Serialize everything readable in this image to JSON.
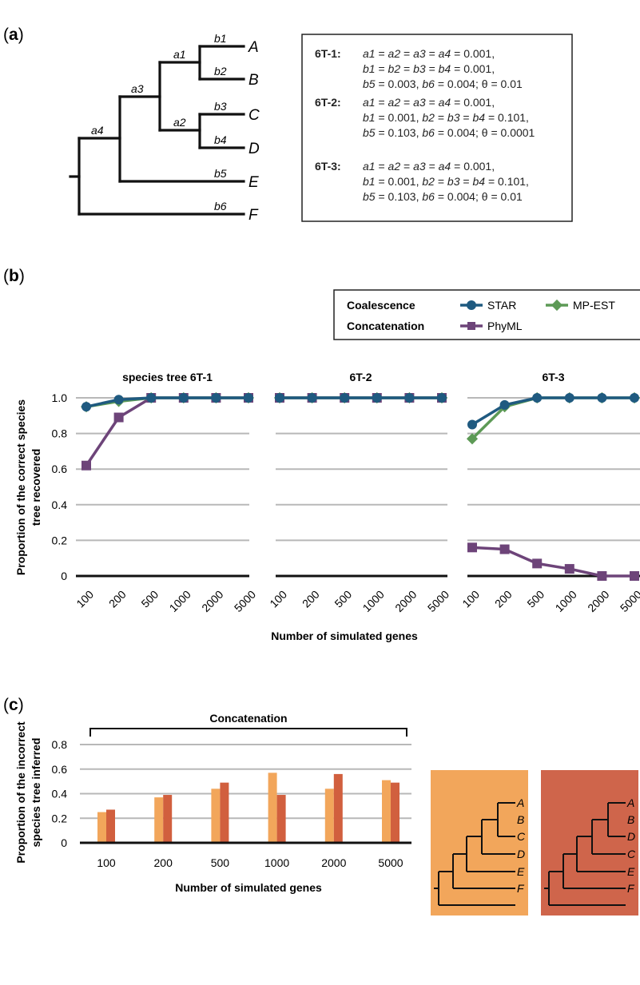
{
  "panel_a": {
    "label_open": "(",
    "label_letter": "a",
    "label_close": ")",
    "tree": {
      "taxa": [
        "A",
        "B",
        "C",
        "D",
        "E",
        "F"
      ],
      "branches": [
        "a1",
        "a2",
        "a3",
        "a4",
        "b1",
        "b2",
        "b3",
        "b4",
        "b5",
        "b6"
      ]
    },
    "params": [
      {
        "id": "6T-1:",
        "lines": [
          "a1 = a2 = a3 = a4 = 0.001,",
          "b1 = b2 = b3 = b4 = 0.001,",
          "b5 = 0.003, b6 = 0.004; θ = 0.01"
        ]
      },
      {
        "id": "6T-2:",
        "lines": [
          "a1 = a2 = a3 = a4 = 0.001,",
          "b1 = 0.001, b2 = b3 = b4 = 0.101,",
          "b5 = 0.103, b6 = 0.004; θ = 0.0001"
        ]
      },
      {
        "id": "6T-3:",
        "lines": [
          "a1 = a2 = a3 = a4 = 0.001,",
          "b1 = 0.001, b2 = b3 = b4 = 0.101,",
          "b5 = 0.103, b6 = 0.004; θ = 0.01"
        ]
      }
    ]
  },
  "panel_b": {
    "label_open": "(",
    "label_letter": "b",
    "label_close": ")",
    "legend": {
      "coalescence_label": "Coalescence",
      "concatenation_label": "Concatenation",
      "star": "STAR",
      "mpest": "MP-EST",
      "phyml": "PhyML"
    }
  },
  "panel_c": {
    "label_open": "(",
    "label_letter": "c",
    "label_close": ")",
    "bracket_label": "Concatenation",
    "inset_trees": [
      {
        "taxa": [
          "A",
          "B",
          "C",
          "D",
          "E",
          "F"
        ]
      },
      {
        "taxa": [
          "A",
          "B",
          "D",
          "C",
          "E",
          "F"
        ]
      }
    ]
  },
  "colors": {
    "star": "#1f5a80",
    "mpest": "#5d9a56",
    "phyml": "#6d4479",
    "bar_light": "#f2a65b",
    "bar_dark": "#d15f3e",
    "tree_light_bg": "#f2a65b",
    "tree_dark_bg": "#cf654b",
    "grid": "#b8b8b8"
  },
  "chart_data": [
    {
      "type": "line",
      "title": "species tree 6T-1",
      "ylabel": "Proportion of the correct species tree recovered",
      "xlabel": "Number of simulated genes",
      "ylim": [
        0,
        1.0
      ],
      "yticks": [
        "0",
        "0.2",
        "0.4",
        "0.6",
        "0.8",
        "1.0"
      ],
      "categories": [
        "100",
        "200",
        "500",
        "1000",
        "2000",
        "5000"
      ],
      "grid": true,
      "series": [
        {
          "name": "STAR",
          "values": [
            0.95,
            0.99,
            1.0,
            1.0,
            1.0,
            1.0
          ]
        },
        {
          "name": "MP-EST",
          "values": [
            0.95,
            0.98,
            1.0,
            1.0,
            1.0,
            1.0
          ]
        },
        {
          "name": "PhyML",
          "values": [
            0.62,
            0.89,
            1.0,
            1.0,
            1.0,
            1.0
          ]
        }
      ]
    },
    {
      "type": "line",
      "title": "6T-2",
      "ylim": [
        0,
        1.0
      ],
      "categories": [
        "100",
        "200",
        "500",
        "1000",
        "2000",
        "5000"
      ],
      "grid": true,
      "series": [
        {
          "name": "STAR",
          "values": [
            1.0,
            1.0,
            1.0,
            1.0,
            1.0,
            1.0
          ]
        },
        {
          "name": "MP-EST",
          "values": [
            1.0,
            1.0,
            1.0,
            1.0,
            1.0,
            1.0
          ]
        },
        {
          "name": "PhyML",
          "values": [
            1.0,
            1.0,
            1.0,
            1.0,
            1.0,
            1.0
          ]
        }
      ]
    },
    {
      "type": "line",
      "title": "6T-3",
      "ylim": [
        0,
        1.0
      ],
      "categories": [
        "100",
        "200",
        "500",
        "1000",
        "2000",
        "5000"
      ],
      "grid": true,
      "series": [
        {
          "name": "STAR",
          "values": [
            0.85,
            0.96,
            1.0,
            1.0,
            1.0,
            1.0
          ]
        },
        {
          "name": "MP-EST",
          "values": [
            0.77,
            0.95,
            1.0,
            1.0,
            1.0,
            1.0
          ]
        },
        {
          "name": "PhyML",
          "values": [
            0.16,
            0.15,
            0.07,
            0.04,
            0.0,
            0.0
          ]
        }
      ]
    },
    {
      "type": "bar",
      "ylabel": "Proportion of the incorrect species tree inferred",
      "xlabel": "Number of simulated genes",
      "ylim": [
        0,
        0.8
      ],
      "yticks": [
        "0",
        "0.2",
        "0.4",
        "0.6",
        "0.8"
      ],
      "categories": [
        "100",
        "200",
        "500",
        "1000",
        "2000",
        "5000"
      ],
      "grid": true,
      "series": [
        {
          "values": [
            0.25,
            0.37,
            0.44,
            0.57,
            0.44,
            0.51
          ]
        },
        {
          "values": [
            0.27,
            0.39,
            0.49,
            0.39,
            0.56,
            0.49
          ]
        }
      ]
    }
  ]
}
